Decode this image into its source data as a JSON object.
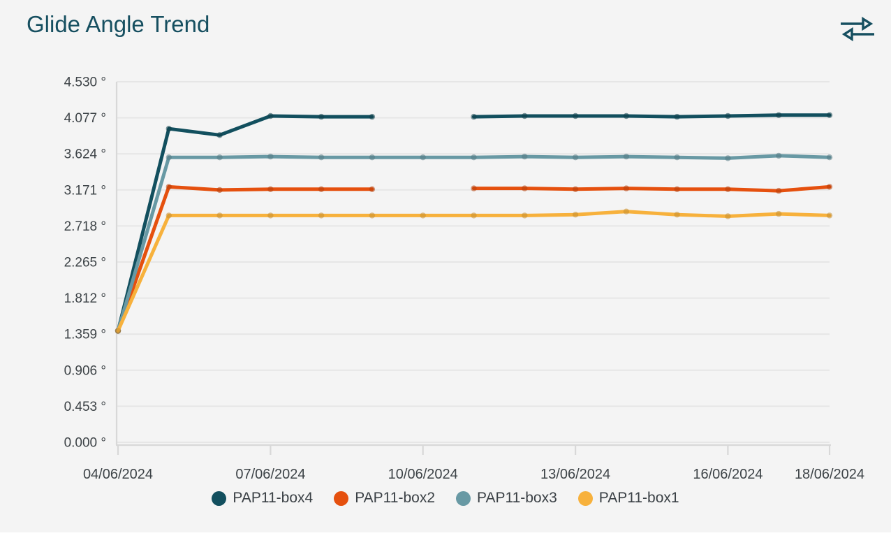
{
  "header": {
    "title": "Glide Angle Trend",
    "icon": "swap-horizontal-arrows",
    "title_color": "#164f60"
  },
  "colors": {
    "background": "#f4f4f4",
    "gridline": "#e5e5e5",
    "axis_line": "#d8d8d8",
    "axis_label": "#3d4347"
  },
  "chart_data": {
    "type": "line",
    "title": "Glide Angle Trend",
    "unit": "°",
    "grid": true,
    "legend_position": "bottom",
    "x": [
      "04/06/2024",
      "05/06/2024",
      "06/06/2024",
      "07/06/2024",
      "08/06/2024",
      "09/06/2024",
      "10/06/2024",
      "11/06/2024",
      "12/06/2024",
      "13/06/2024",
      "14/06/2024",
      "15/06/2024",
      "16/06/2024",
      "17/06/2024",
      "18/06/2024"
    ],
    "x_tick_indices": [
      0,
      3,
      6,
      9,
      12,
      14
    ],
    "x_tick_labels": [
      "04/06/2024",
      "07/06/2024",
      "10/06/2024",
      "13/06/2024",
      "16/06/2024",
      "18/06/2024"
    ],
    "y_ticks": [
      0.0,
      0.453,
      0.906,
      1.359,
      1.812,
      2.265,
      2.718,
      3.171,
      3.624,
      4.077,
      4.53
    ],
    "y_tick_suffix": " °",
    "ylim": [
      0,
      4.53
    ],
    "series": [
      {
        "name": "PAP11-box4",
        "color": "#124f5e",
        "values": [
          1.4,
          3.94,
          3.86,
          4.1,
          4.09,
          4.09,
          null,
          4.09,
          4.1,
          4.1,
          4.1,
          4.09,
          4.1,
          4.11,
          4.11
        ]
      },
      {
        "name": "PAP11-box2",
        "color": "#e5500e",
        "values": [
          1.4,
          3.21,
          3.17,
          3.18,
          3.18,
          3.18,
          null,
          3.19,
          3.19,
          3.18,
          3.19,
          3.18,
          3.18,
          3.16,
          3.21
        ]
      },
      {
        "name": "PAP11-box3",
        "color": "#6899a4",
        "values": [
          1.4,
          3.58,
          3.58,
          3.59,
          3.58,
          3.58,
          3.58,
          3.58,
          3.59,
          3.58,
          3.59,
          3.58,
          3.57,
          3.6,
          3.58
        ]
      },
      {
        "name": "PAP11-box1",
        "color": "#f7b13c",
        "values": [
          1.4,
          2.85,
          2.85,
          2.85,
          2.85,
          2.85,
          2.85,
          2.85,
          2.85,
          2.86,
          2.9,
          2.86,
          2.84,
          2.87,
          2.85
        ]
      }
    ]
  }
}
